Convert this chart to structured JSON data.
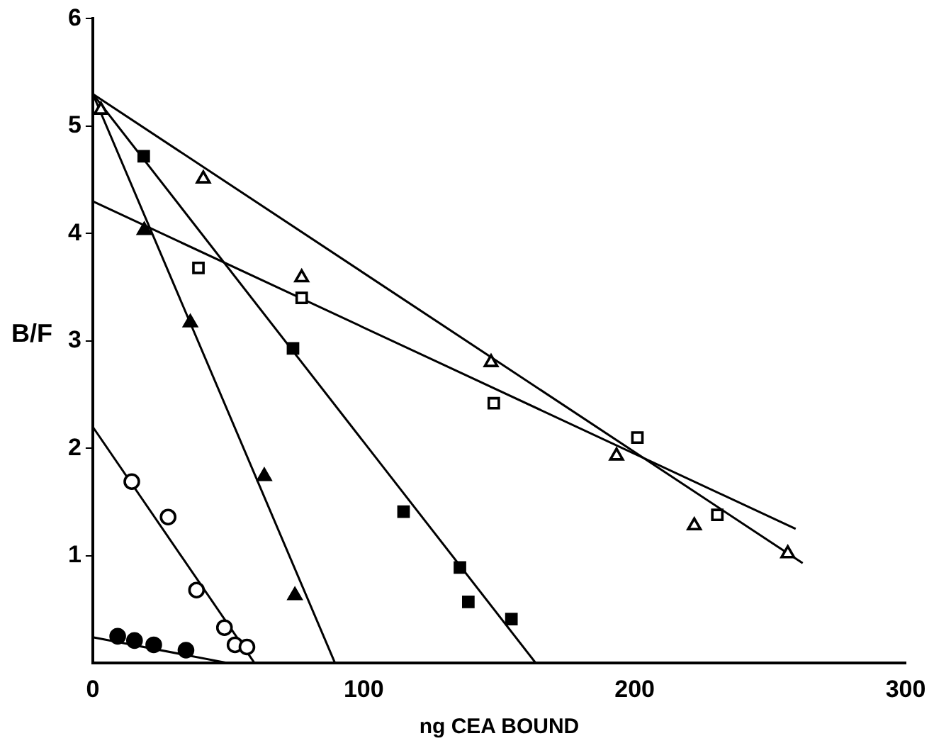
{
  "chart_data": {
    "type": "scatter",
    "xlabel": "ng CEA BOUND",
    "ylabel": "B/F",
    "xlim": [
      0,
      300
    ],
    "ylim": [
      0,
      6
    ],
    "xticks": [
      0,
      100,
      200,
      300
    ],
    "yticks": [
      1,
      2,
      3,
      4,
      5,
      6
    ],
    "grid": false,
    "legend": false,
    "series": [
      {
        "marker": "triangle",
        "color": "#ffffff",
        "x": [
          3,
          40.8,
          77.1,
          147,
          193.3,
          222,
          256.5
        ],
        "values": [
          5.15,
          4.51,
          3.59,
          2.8,
          1.93,
          1.28,
          1.02
        ]
      },
      {
        "marker": "square",
        "color": "#ffffff",
        "x": [
          39,
          77.1,
          148,
          201,
          230.5
        ],
        "values": [
          3.68,
          3.4,
          2.42,
          2.1,
          1.38
        ]
      },
      {
        "marker": "square",
        "color": "#000000",
        "x": [
          18.8,
          73.9,
          114.7,
          135.5,
          138.6,
          154.5
        ],
        "values": [
          4.72,
          2.93,
          1.41,
          0.89,
          0.57,
          0.41
        ]
      },
      {
        "marker": "triangle",
        "color": "#000000",
        "x": [
          19,
          36,
          63.3,
          74.6
        ],
        "values": [
          4.03,
          3.17,
          1.74,
          0.63
        ]
      },
      {
        "marker": "circle",
        "color": "#ffffff",
        "x": [
          14.4,
          27.8,
          38.3,
          48.6,
          52.5,
          56.9
        ],
        "values": [
          1.69,
          1.36,
          0.68,
          0.33,
          0.17,
          0.15
        ]
      },
      {
        "marker": "circle",
        "color": "#000000",
        "x": [
          9.2,
          15.4,
          22.5,
          34.4
        ],
        "values": [
          0.25,
          0.21,
          0.17,
          0.12
        ]
      },
      {
        "type": "line",
        "marker": "none",
        "color": "#000000",
        "x": [
          0,
          262
        ],
        "values": [
          5.3,
          0.93
        ]
      },
      {
        "type": "line",
        "marker": "none",
        "color": "#000000",
        "x": [
          0,
          259.4
        ],
        "values": [
          4.3,
          1.25
        ]
      },
      {
        "type": "line",
        "marker": "none",
        "color": "#000000",
        "x": [
          0,
          163.5
        ],
        "values": [
          5.3,
          0
        ]
      },
      {
        "type": "line",
        "marker": "none",
        "color": "#000000",
        "x": [
          0,
          89.4
        ],
        "values": [
          5.3,
          0
        ]
      },
      {
        "type": "line",
        "marker": "none",
        "color": "#000000",
        "x": [
          0,
          59.7
        ],
        "values": [
          2.2,
          0
        ]
      },
      {
        "type": "line",
        "marker": "none",
        "color": "#000000",
        "x": [
          0,
          50
        ],
        "values": [
          0.24,
          0
        ]
      }
    ]
  }
}
